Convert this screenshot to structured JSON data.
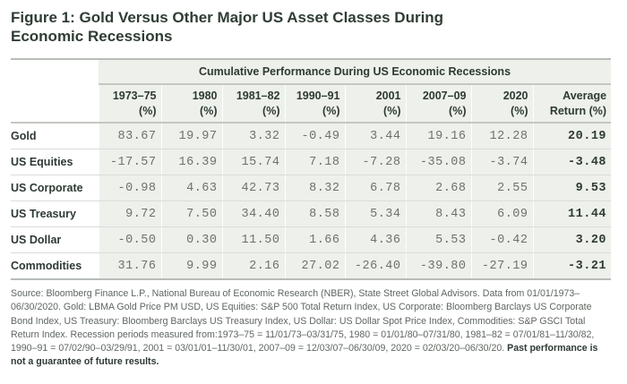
{
  "title": "Figure 1: Gold Versus Other Major US Asset Classes During Economic Recessions",
  "table": {
    "group_header": "Cumulative Performance During US Economic Recessions",
    "columns": [
      {
        "line1": "1973–75",
        "line2": "(%)"
      },
      {
        "line1": "1980",
        "line2": "(%)"
      },
      {
        "line1": "1981–82",
        "line2": "(%)"
      },
      {
        "line1": "1990–91",
        "line2": "(%)"
      },
      {
        "line1": "2001",
        "line2": "(%)"
      },
      {
        "line1": "2007–09",
        "line2": "(%)"
      },
      {
        "line1": "2020",
        "line2": "(%)"
      },
      {
        "line1": "Average",
        "line2": "Return (%)"
      }
    ],
    "rows": [
      {
        "label": "Gold",
        "values": [
          "83.67",
          "19.97",
          "3.32",
          "-0.49",
          "3.44",
          "19.16",
          "12.28",
          "20.19"
        ]
      },
      {
        "label": "US Equities",
        "values": [
          "-17.57",
          "16.39",
          "15.74",
          "7.18",
          "-7.28",
          "-35.08",
          "-3.74",
          "-3.48"
        ]
      },
      {
        "label": "US Corporate",
        "values": [
          "-0.98",
          "4.63",
          "42.73",
          "8.32",
          "6.78",
          "2.68",
          "2.55",
          "9.53"
        ]
      },
      {
        "label": "US Treasury",
        "values": [
          "9.72",
          "7.50",
          "34.40",
          "8.58",
          "5.34",
          "8.43",
          "6.09",
          "11.44"
        ]
      },
      {
        "label": "US Dollar",
        "values": [
          "-0.50",
          "0.30",
          "11.50",
          "1.66",
          "4.36",
          "5.53",
          "-0.42",
          "3.20"
        ]
      },
      {
        "label": "Commodities",
        "values": [
          "31.76",
          "9.99",
          "2.16",
          "27.02",
          "-26.40",
          "-39.80",
          "-27.19",
          "-3.21"
        ]
      }
    ]
  },
  "source": {
    "text": "Source: Bloomberg Finance L.P., National Bureau of Economic Research (NBER), State Street Global Advisors. Data from 01/01/1973–06/30/2020. Gold: LBMA Gold Price PM USD, US Equities: S&P 500 Total Return Index, US Corporate: Bloomberg Barclays US Corporate Bond Index, US Treasury: Bloomberg Barclays US Treasury Index, US Dollar: US Dollar Spot Price Index, Commodities: S&P GSCI Total Return Index. Recession periods measured from:1973–75 = 11/01/73–03/31/75, 1980 = 01/01/80–07/31/80, 1981–82 = 07/01/81–11/30/82, 1990–91 = 07/02/90–03/29/91, 2001 = 03/01/01–11/30/01, 2007–09 = 12/03/07–06/30/09, 2020 = 02/03/20–06/30/20. ",
    "disclaimer": "Past performance is not a guarantee of future results."
  }
}
